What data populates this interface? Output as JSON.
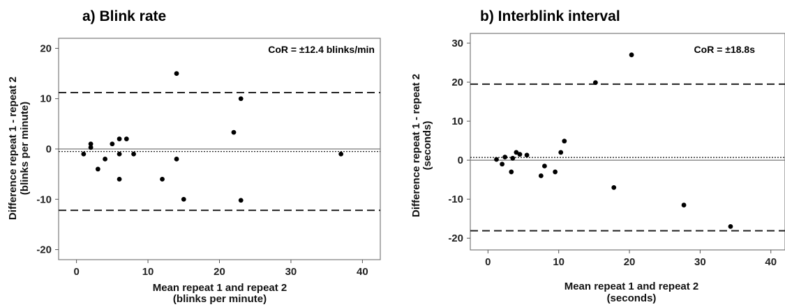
{
  "chart_data": [
    {
      "type": "scatter",
      "panel": "a) Blink rate",
      "annotation": "CoR = ±12.4 blinks/min",
      "xlabel_line1": "Mean repeat 1 and repeat 2",
      "xlabel_line2": "(blinks per minute)",
      "ylabel_line1": "Difference repeat 1 - repeat 2",
      "ylabel_line2": "(blinks per minute)",
      "xlim": [
        -2.5,
        42.5
      ],
      "ylim": [
        -22,
        22
      ],
      "xticks": [
        0,
        10,
        20,
        30,
        40
      ],
      "yticks": [
        -20,
        -10,
        0,
        10,
        20
      ],
      "grid": false,
      "points": [
        {
          "x": 1,
          "y": -1
        },
        {
          "x": 2,
          "y": 1
        },
        {
          "x": 2,
          "y": 0.3
        },
        {
          "x": 3,
          "y": -4
        },
        {
          "x": 4,
          "y": -2
        },
        {
          "x": 5,
          "y": 1
        },
        {
          "x": 6,
          "y": 2
        },
        {
          "x": 6,
          "y": -1
        },
        {
          "x": 6,
          "y": -6
        },
        {
          "x": 7,
          "y": 2
        },
        {
          "x": 8,
          "y": -1
        },
        {
          "x": 12,
          "y": -6
        },
        {
          "x": 14,
          "y": 15
        },
        {
          "x": 14,
          "y": -2
        },
        {
          "x": 15,
          "y": -10
        },
        {
          "x": 22,
          "y": 3.3
        },
        {
          "x": 23,
          "y": 10
        },
        {
          "x": 23,
          "y": -10.2
        },
        {
          "x": 37,
          "y": -1
        }
      ],
      "reference_lines": [
        {
          "y": 11.2,
          "style": "dashed"
        },
        {
          "y": -12.2,
          "style": "dashed"
        },
        {
          "y": 0,
          "style": "solid"
        },
        {
          "y": -0.5,
          "style": "dotted"
        }
      ]
    },
    {
      "type": "scatter",
      "panel": "b) Interblink interval",
      "annotation": "CoR = ±18.8s",
      "xlabel_line1": "Mean repeat 1 and repeat 2",
      "xlabel_line2": "(seconds)",
      "ylabel_line1": "Difference repeat 1 - repeat 2",
      "ylabel_line2": "(seconds)",
      "xlim": [
        -2.5,
        42
      ],
      "ylim": [
        -23,
        32.5
      ],
      "xticks": [
        0,
        10,
        20,
        30,
        40
      ],
      "yticks": [
        -20,
        -10,
        0,
        10,
        20,
        30
      ],
      "grid": false,
      "points": [
        {
          "x": 1.2,
          "y": 0.2
        },
        {
          "x": 2,
          "y": -1
        },
        {
          "x": 2.4,
          "y": 0.8
        },
        {
          "x": 3.3,
          "y": -3
        },
        {
          "x": 3.5,
          "y": 0.5
        },
        {
          "x": 4,
          "y": 2
        },
        {
          "x": 4.5,
          "y": 1.5
        },
        {
          "x": 5.5,
          "y": 1.3
        },
        {
          "x": 7.5,
          "y": -4
        },
        {
          "x": 8,
          "y": -1.5
        },
        {
          "x": 9.5,
          "y": -3
        },
        {
          "x": 10.3,
          "y": 2
        },
        {
          "x": 10.8,
          "y": 4.9
        },
        {
          "x": 15.2,
          "y": 19.9
        },
        {
          "x": 17.8,
          "y": -7
        },
        {
          "x": 20.3,
          "y": 27
        },
        {
          "x": 27.7,
          "y": -11.5
        },
        {
          "x": 34.3,
          "y": -17
        }
      ],
      "reference_lines": [
        {
          "y": 19.5,
          "style": "dashed"
        },
        {
          "y": -18.1,
          "style": "dashed"
        },
        {
          "y": 0,
          "style": "solid"
        },
        {
          "y": 0.7,
          "style": "dotted"
        }
      ]
    }
  ]
}
